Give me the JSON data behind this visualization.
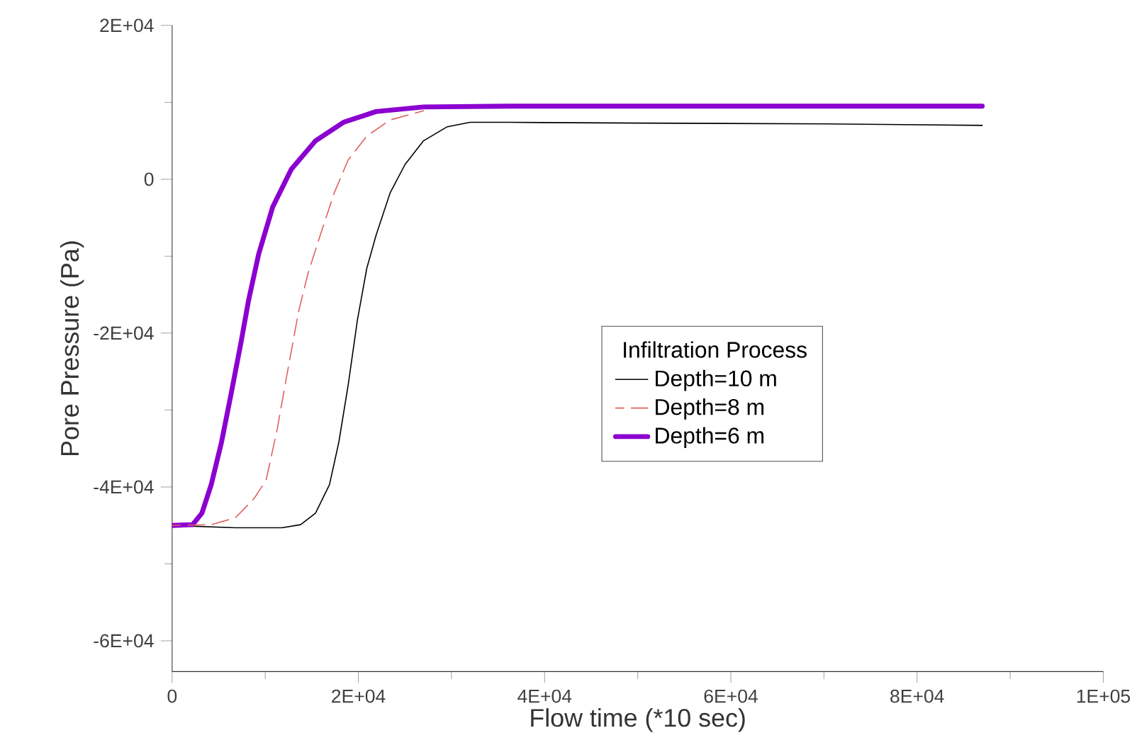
{
  "chart_data": {
    "type": "line",
    "xlabel": "Flow time (*10 sec)",
    "ylabel": "Pore Pressure (Pa)",
    "legend_title": "Infiltration Process",
    "legend": "center",
    "grid": false,
    "marker": "none",
    "xlim": [
      0,
      100000
    ],
    "xticks": [
      0,
      {
        "value": 20000,
        "label": "2E+04"
      },
      {
        "value": 40000,
        "label": "4E+04"
      },
      {
        "value": 60000,
        "label": "6E+04"
      },
      {
        "value": 80000,
        "label": "8E+04"
      },
      {
        "value": 100000,
        "label": "1E+05"
      }
    ],
    "ylim": [
      -64000,
      20000
    ],
    "yticks": [
      {
        "value": -60000,
        "label": "-6E+04"
      },
      {
        "value": -40000,
        "label": "-4E+04"
      },
      {
        "value": -20000,
        "label": "-2E+04"
      },
      0,
      {
        "value": 20000,
        "label": "2E+04"
      }
    ],
    "series": [
      {
        "name": "Depth=10 m",
        "color": "#000000",
        "line_style": "solid",
        "x": [
          0,
          6800,
          11800,
          13800,
          15400,
          16900,
          17900,
          18900,
          19900,
          20900,
          21900,
          23400,
          25000,
          27000,
          29500,
          32000,
          36100,
          50000,
          70000,
          87000
        ],
        "values": [
          -45000,
          -45300,
          -45300,
          -44900,
          -43400,
          -39700,
          -34200,
          -26800,
          -18300,
          -11600,
          -7300,
          -1800,
          1900,
          5000,
          6800,
          7400,
          7400,
          7300,
          7200,
          7000
        ]
      },
      {
        "name": "Depth=8 m",
        "color": "#e06060",
        "line_style": "dashed",
        "x": [
          0,
          4200,
          6800,
          8800,
          10100,
          11300,
          12300,
          13600,
          14600,
          15900,
          17400,
          18900,
          20900,
          23400,
          27000
        ],
        "values": [
          -45000,
          -44900,
          -44000,
          -41500,
          -39100,
          -32400,
          -25600,
          -17100,
          -12200,
          -7300,
          -1800,
          2500,
          5600,
          7700,
          8900
        ]
      },
      {
        "name": "Depth=6 m",
        "color": "#8b00d0",
        "line_style": "solid",
        "x": [
          0,
          2200,
          3200,
          4200,
          5300,
          6300,
          7400,
          8200,
          9300,
          10800,
          12800,
          15400,
          18400,
          21900,
          27000,
          36100,
          60000,
          87000
        ],
        "values": [
          -45000,
          -44900,
          -43400,
          -39700,
          -34200,
          -28100,
          -21200,
          -15800,
          -9700,
          -3600,
          1300,
          5000,
          7400,
          8800,
          9400,
          9500,
          9500,
          9500
        ]
      }
    ]
  }
}
